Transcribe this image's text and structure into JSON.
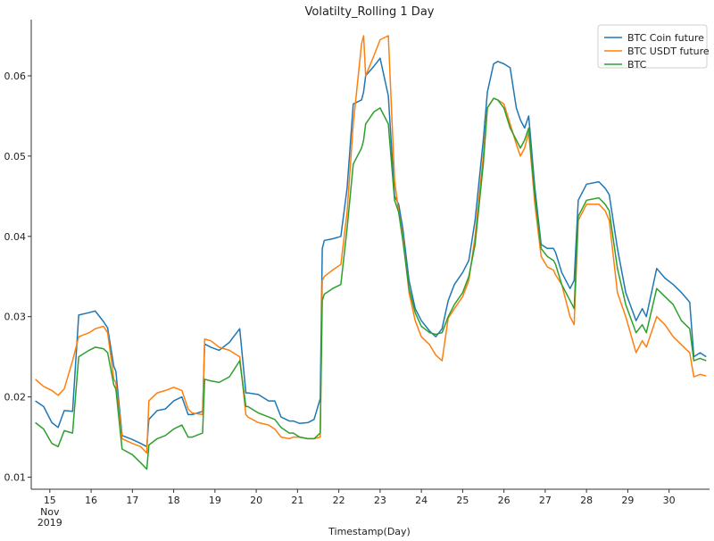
{
  "chart_data": {
    "type": "line",
    "title": "Volatilty_Rolling 1 Day",
    "xlabel": "Timestamp(Day)",
    "ylabel": "",
    "x_ticks": [
      "15",
      "16",
      "17",
      "18",
      "19",
      "20",
      "21",
      "22",
      "23",
      "24",
      "25",
      "26",
      "27",
      "28",
      "29",
      "30"
    ],
    "x_tick_sublabels": [
      "Nov",
      "2019"
    ],
    "xlim": [
      14.55,
      30.98
    ],
    "ylim": [
      0.0085,
      0.067
    ],
    "y_ticks": [
      "0.01",
      "0.02",
      "0.03",
      "0.04",
      "0.05",
      "0.06"
    ],
    "grid": false,
    "legend_position": "top-right",
    "colors": {
      "BTC Coin future": "#1f77b4",
      "BTC USDT future": "#ff7f0e",
      "BTC": "#2ca02c"
    },
    "series": [
      {
        "name": "BTC Coin future",
        "x": [
          14.65,
          14.85,
          15.05,
          15.2,
          15.35,
          15.55,
          15.7,
          15.95,
          16.1,
          16.3,
          16.4,
          16.55,
          16.6,
          16.75,
          17.0,
          17.2,
          17.35,
          17.4,
          17.6,
          17.8,
          18.0,
          18.2,
          18.35,
          18.45,
          18.7,
          18.75,
          18.9,
          19.1,
          19.35,
          19.6,
          19.75,
          19.8,
          20.05,
          20.3,
          20.45,
          20.6,
          20.8,
          20.9,
          21.05,
          21.25,
          21.4,
          21.55,
          21.6,
          21.65,
          21.85,
          22.05,
          22.2,
          22.35,
          22.55,
          22.6,
          22.65,
          22.85,
          23.0,
          23.2,
          23.35,
          23.45,
          23.55,
          23.7,
          23.85,
          24.0,
          24.2,
          24.35,
          24.5,
          24.65,
          24.8,
          25.0,
          25.15,
          25.3,
          25.5,
          25.6,
          25.75,
          25.85,
          26.0,
          26.15,
          26.3,
          26.4,
          26.5,
          26.6,
          26.75,
          26.9,
          27.05,
          27.2,
          27.25,
          27.4,
          27.6,
          27.7,
          27.8,
          28.0,
          28.3,
          28.45,
          28.55,
          28.75,
          28.95,
          29.2,
          29.35,
          29.45,
          29.7,
          29.9,
          30.1,
          30.3,
          30.5,
          30.6,
          30.75,
          30.9
        ],
        "y": [
          0.0195,
          0.0188,
          0.0168,
          0.0162,
          0.0183,
          0.0182,
          0.0302,
          0.0305,
          0.0307,
          0.0294,
          0.0286,
          0.0238,
          0.0232,
          0.0152,
          0.0147,
          0.0142,
          0.0138,
          0.0172,
          0.0183,
          0.0185,
          0.0195,
          0.02,
          0.0178,
          0.0178,
          0.0182,
          0.0266,
          0.0262,
          0.0258,
          0.0268,
          0.0285,
          0.0205,
          0.0205,
          0.0203,
          0.0195,
          0.0195,
          0.0175,
          0.017,
          0.017,
          0.0167,
          0.0168,
          0.0172,
          0.0198,
          0.0385,
          0.0395,
          0.0397,
          0.04,
          0.046,
          0.0565,
          0.057,
          0.058,
          0.06,
          0.0612,
          0.0622,
          0.0575,
          0.045,
          0.044,
          0.041,
          0.0345,
          0.031,
          0.0295,
          0.0282,
          0.0275,
          0.0285,
          0.032,
          0.034,
          0.0355,
          0.037,
          0.042,
          0.052,
          0.058,
          0.0615,
          0.0618,
          0.0615,
          0.061,
          0.056,
          0.0545,
          0.0535,
          0.055,
          0.046,
          0.039,
          0.0385,
          0.0385,
          0.038,
          0.0355,
          0.0335,
          0.0345,
          0.0445,
          0.0465,
          0.0468,
          0.046,
          0.0452,
          0.0385,
          0.033,
          0.0295,
          0.031,
          0.03,
          0.036,
          0.0348,
          0.034,
          0.033,
          0.0318,
          0.025,
          0.0255,
          0.025
        ]
      },
      {
        "name": "BTC USDT future",
        "x": [
          14.65,
          14.85,
          15.05,
          15.2,
          15.35,
          15.55,
          15.7,
          15.95,
          16.1,
          16.3,
          16.4,
          16.55,
          16.6,
          16.75,
          17.0,
          17.2,
          17.35,
          17.4,
          17.6,
          17.8,
          18.0,
          18.2,
          18.35,
          18.45,
          18.7,
          18.75,
          18.9,
          19.1,
          19.35,
          19.6,
          19.75,
          19.8,
          20.05,
          20.3,
          20.45,
          20.6,
          20.8,
          20.9,
          21.05,
          21.25,
          21.4,
          21.55,
          21.6,
          21.65,
          21.85,
          22.05,
          22.2,
          22.35,
          22.55,
          22.6,
          22.65,
          22.85,
          23.0,
          23.2,
          23.35,
          23.45,
          23.55,
          23.7,
          23.85,
          24.0,
          24.2,
          24.35,
          24.5,
          24.65,
          24.8,
          25.0,
          25.15,
          25.3,
          25.5,
          25.6,
          25.75,
          25.85,
          26.0,
          26.15,
          26.3,
          26.4,
          26.5,
          26.6,
          26.75,
          26.9,
          27.05,
          27.2,
          27.25,
          27.4,
          27.6,
          27.7,
          27.8,
          28.0,
          28.3,
          28.45,
          28.55,
          28.75,
          28.95,
          29.2,
          29.35,
          29.45,
          29.7,
          29.9,
          30.1,
          30.3,
          30.5,
          30.6,
          30.75,
          30.9
        ],
        "y": [
          0.0222,
          0.0213,
          0.0208,
          0.0202,
          0.021,
          0.0245,
          0.0275,
          0.028,
          0.0285,
          0.0288,
          0.028,
          0.0222,
          0.0218,
          0.0148,
          0.0142,
          0.0138,
          0.013,
          0.0195,
          0.0205,
          0.0208,
          0.0212,
          0.0208,
          0.0185,
          0.018,
          0.0178,
          0.0272,
          0.027,
          0.0262,
          0.0258,
          0.025,
          0.0178,
          0.0175,
          0.0168,
          0.0165,
          0.016,
          0.015,
          0.0148,
          0.015,
          0.015,
          0.0148,
          0.0148,
          0.015,
          0.0345,
          0.035,
          0.0358,
          0.0365,
          0.043,
          0.054,
          0.064,
          0.065,
          0.06,
          0.0625,
          0.0645,
          0.065,
          0.047,
          0.043,
          0.04,
          0.033,
          0.0295,
          0.0275,
          0.0265,
          0.0252,
          0.0245,
          0.0298,
          0.031,
          0.0325,
          0.0345,
          0.04,
          0.05,
          0.056,
          0.0572,
          0.057,
          0.0565,
          0.054,
          0.0515,
          0.05,
          0.051,
          0.053,
          0.044,
          0.0375,
          0.0362,
          0.0358,
          0.0352,
          0.034,
          0.03,
          0.029,
          0.042,
          0.044,
          0.044,
          0.0432,
          0.042,
          0.033,
          0.03,
          0.0255,
          0.027,
          0.0262,
          0.03,
          0.029,
          0.0275,
          0.0265,
          0.0255,
          0.0225,
          0.0228,
          0.0226
        ]
      },
      {
        "name": "BTC",
        "x": [
          14.65,
          14.85,
          15.05,
          15.2,
          15.35,
          15.55,
          15.7,
          15.95,
          16.1,
          16.3,
          16.4,
          16.55,
          16.6,
          16.75,
          17.0,
          17.2,
          17.35,
          17.4,
          17.6,
          17.8,
          18.0,
          18.2,
          18.35,
          18.45,
          18.7,
          18.75,
          18.9,
          19.1,
          19.35,
          19.6,
          19.75,
          19.8,
          20.05,
          20.3,
          20.45,
          20.6,
          20.8,
          20.9,
          21.05,
          21.25,
          21.4,
          21.55,
          21.6,
          21.65,
          21.85,
          22.05,
          22.2,
          22.35,
          22.55,
          22.6,
          22.65,
          22.85,
          23.0,
          23.2,
          23.35,
          23.45,
          23.55,
          23.7,
          23.85,
          24.0,
          24.2,
          24.35,
          24.5,
          24.65,
          24.8,
          25.0,
          25.15,
          25.3,
          25.5,
          25.6,
          25.75,
          25.85,
          26.0,
          26.15,
          26.3,
          26.4,
          26.5,
          26.6,
          26.75,
          26.9,
          27.05,
          27.2,
          27.25,
          27.4,
          27.6,
          27.7,
          27.8,
          28.0,
          28.3,
          28.45,
          28.55,
          28.75,
          28.95,
          29.2,
          29.35,
          29.45,
          29.7,
          29.9,
          30.1,
          30.3,
          30.5,
          30.6,
          30.75,
          30.9
        ],
        "y": [
          0.0168,
          0.016,
          0.0142,
          0.0138,
          0.0158,
          0.0155,
          0.025,
          0.0258,
          0.0262,
          0.026,
          0.0255,
          0.0215,
          0.021,
          0.0135,
          0.0128,
          0.0118,
          0.011,
          0.014,
          0.0148,
          0.0152,
          0.016,
          0.0165,
          0.015,
          0.015,
          0.0155,
          0.0222,
          0.022,
          0.0218,
          0.0225,
          0.0245,
          0.0188,
          0.0188,
          0.018,
          0.0175,
          0.0172,
          0.0162,
          0.0155,
          0.0155,
          0.015,
          0.0148,
          0.0148,
          0.0155,
          0.032,
          0.0328,
          0.0335,
          0.034,
          0.041,
          0.049,
          0.051,
          0.052,
          0.054,
          0.0555,
          0.056,
          0.054,
          0.0445,
          0.043,
          0.0395,
          0.0335,
          0.0305,
          0.0288,
          0.028,
          0.0278,
          0.028,
          0.03,
          0.0315,
          0.033,
          0.035,
          0.039,
          0.049,
          0.056,
          0.0572,
          0.057,
          0.056,
          0.0535,
          0.052,
          0.051,
          0.052,
          0.0535,
          0.045,
          0.0385,
          0.0375,
          0.037,
          0.0365,
          0.034,
          0.032,
          0.031,
          0.0425,
          0.0445,
          0.0448,
          0.044,
          0.0432,
          0.036,
          0.0315,
          0.028,
          0.029,
          0.028,
          0.0335,
          0.0325,
          0.0315,
          0.0295,
          0.0285,
          0.0245,
          0.0248,
          0.0245
        ]
      }
    ]
  }
}
